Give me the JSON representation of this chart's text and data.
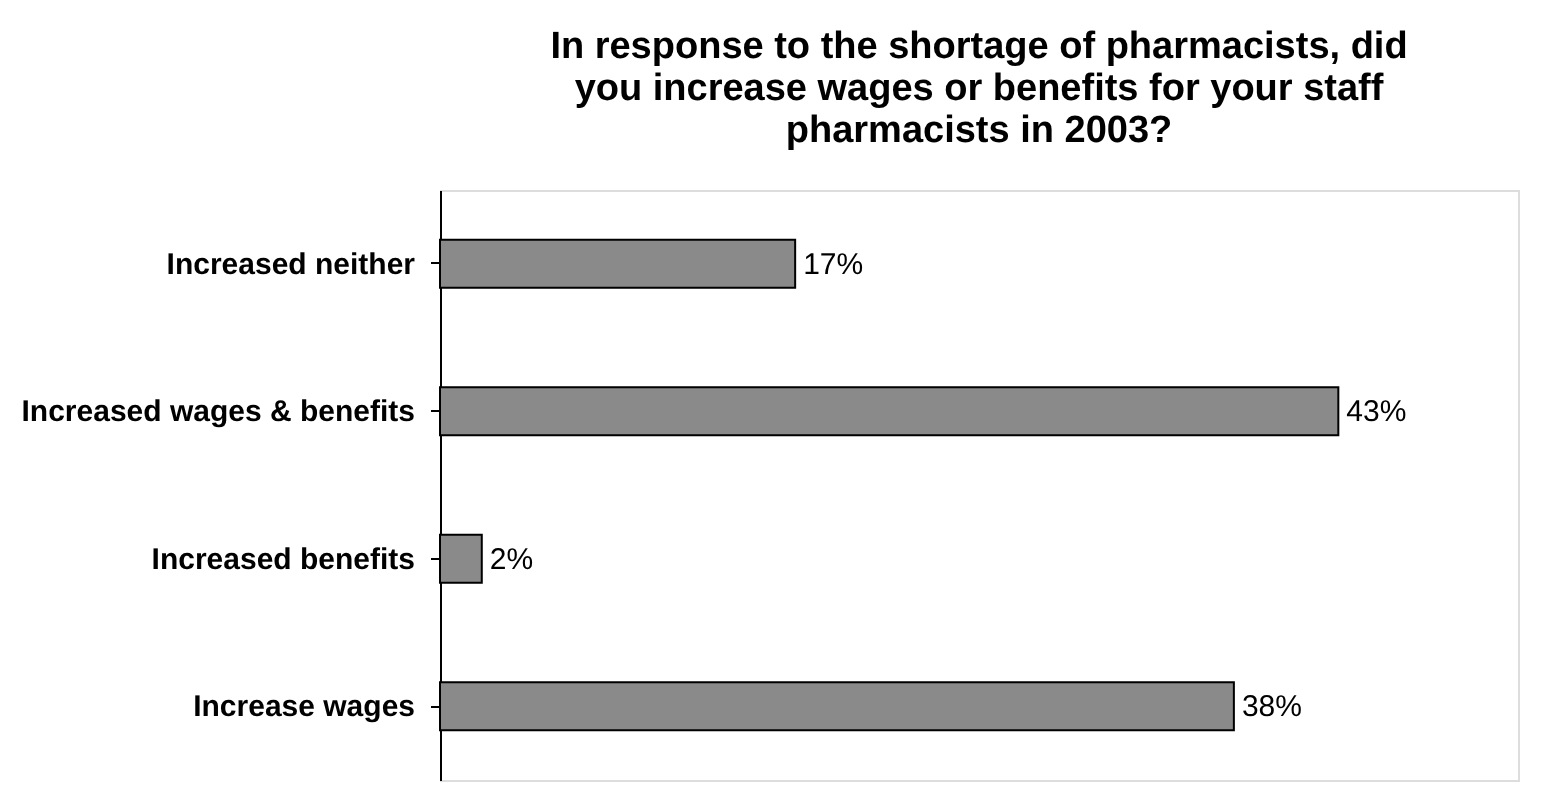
{
  "chart_data": {
    "type": "bar",
    "orientation": "horizontal",
    "title": [
      "In response to the shortage of pharmacists, did",
      "you increase wages or benefits for your staff",
      "pharmacists in 2003?"
    ],
    "categories": [
      "Increased neither",
      "Increased wages & benefits",
      "Increased benefits",
      "Increase wages"
    ],
    "values": [
      17,
      43,
      2,
      38
    ],
    "value_labels": [
      "17%",
      "43%",
      "2%",
      "38%"
    ],
    "color": "#8a8a8a"
  }
}
